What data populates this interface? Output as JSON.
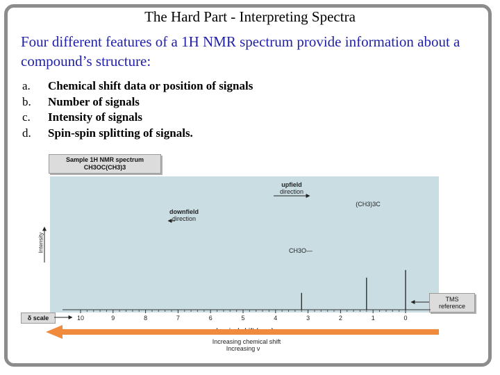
{
  "slide": {
    "title": "The Hard Part - Interpreting Spectra",
    "subtitle": "Four different features of a 1H NMR spectrum provide information about a compound’s structure:",
    "items": [
      {
        "marker": "a.",
        "text": "Chemical shift data or position of signals"
      },
      {
        "marker": "b.",
        "text": "Number of signals"
      },
      {
        "marker": "c.",
        "text": "Intensity of signals"
      },
      {
        "marker": "d.",
        "text": "Spin-spin splitting of signals."
      }
    ]
  },
  "figure": {
    "sample_line1": "Sample 1H NMR spectrum",
    "sample_line2": "CH3OC(CH3)3",
    "upfield_line1": "upfield",
    "upfield_line2": "direction",
    "downfield_line1": "downfield",
    "downfield_line2": "direction",
    "tertbutyl_label": "(CH3)3C",
    "methoxy_label": "CH3O—",
    "y_axis_label": "Intensity",
    "tms_line1": "TMS",
    "tms_line2": "reference",
    "delta_scale": "δ scale",
    "axis_title": "chemical shift (ppm)",
    "increasing_shift": "Increasing chemical shift",
    "increasing_nu": "Increasing ν",
    "ticks": [
      "10",
      "9",
      "8",
      "7",
      "6",
      "5",
      "4",
      "3",
      "2",
      "1",
      "0"
    ],
    "peaks": [
      {
        "ppm": 3.2,
        "relative_height": 0.22
      },
      {
        "ppm": 1.2,
        "relative_height": 0.42
      },
      {
        "ppm": 0.0,
        "relative_height": 0.52
      }
    ],
    "colors": {
      "background": "#c9dde3",
      "arrow": "#f08a3c",
      "subtitle": "#1f1fa8"
    }
  }
}
